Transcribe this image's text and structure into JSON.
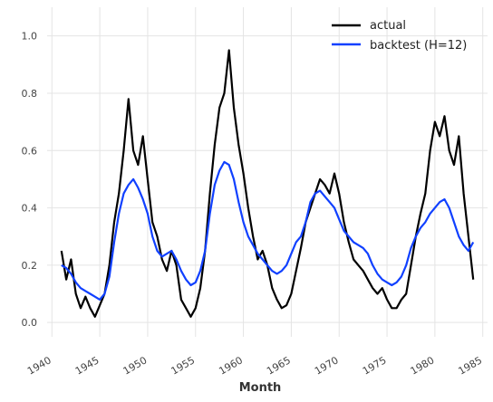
{
  "chart_data": {
    "type": "line",
    "xlabel": "Month",
    "ylabel": "",
    "xlim": [
      1939.5,
      1985.5
    ],
    "ylim": [
      -0.05,
      1.1
    ],
    "x_ticks": [
      1940,
      1945,
      1950,
      1955,
      1960,
      1965,
      1970,
      1975,
      1980,
      1985
    ],
    "x_tick_labels": [
      "1940",
      "1945",
      "1950",
      "1955",
      "1960",
      "1965",
      "1970",
      "1975",
      "1980",
      "1985"
    ],
    "y_ticks": [
      0.0,
      0.2,
      0.4,
      0.6,
      0.8,
      1.0
    ],
    "y_tick_labels": [
      "0.0",
      "0.2",
      "0.4",
      "0.6",
      "0.8",
      "1.0"
    ],
    "grid": true,
    "legend_position": "top-right",
    "series": [
      {
        "name": "actual",
        "color": "#000000",
        "x": [
          1941.0,
          1941.5,
          1942.0,
          1942.5,
          1943.0,
          1943.5,
          1944.0,
          1944.5,
          1945.0,
          1945.5,
          1946.0,
          1946.5,
          1947.0,
          1947.5,
          1948.0,
          1948.5,
          1949.0,
          1949.5,
          1950.0,
          1950.5,
          1951.0,
          1951.5,
          1952.0,
          1952.5,
          1953.0,
          1953.5,
          1954.0,
          1954.5,
          1955.0,
          1955.5,
          1956.0,
          1956.5,
          1957.0,
          1957.5,
          1958.0,
          1958.5,
          1959.0,
          1959.5,
          1960.0,
          1960.5,
          1961.0,
          1961.5,
          1962.0,
          1962.5,
          1963.0,
          1963.5,
          1964.0,
          1964.5,
          1965.0,
          1965.5,
          1966.0,
          1966.5,
          1967.0,
          1967.5,
          1968.0,
          1968.5,
          1969.0,
          1969.5,
          1970.0,
          1970.5,
          1971.0,
          1971.5,
          1972.0,
          1972.5,
          1973.0,
          1973.5,
          1974.0,
          1974.5,
          1975.0,
          1975.5,
          1976.0,
          1976.5,
          1977.0,
          1977.5,
          1978.0,
          1978.5,
          1979.0,
          1979.5,
          1980.0,
          1980.5,
          1981.0,
          1981.5,
          1982.0,
          1982.5,
          1983.0,
          1983.5,
          1984.0
        ],
        "values": [
          0.25,
          0.15,
          0.22,
          0.1,
          0.05,
          0.09,
          0.05,
          0.02,
          0.06,
          0.1,
          0.2,
          0.35,
          0.45,
          0.6,
          0.78,
          0.6,
          0.55,
          0.65,
          0.5,
          0.35,
          0.3,
          0.22,
          0.18,
          0.25,
          0.2,
          0.08,
          0.05,
          0.02,
          0.05,
          0.12,
          0.25,
          0.45,
          0.62,
          0.75,
          0.8,
          0.95,
          0.75,
          0.62,
          0.52,
          0.4,
          0.3,
          0.22,
          0.25,
          0.2,
          0.12,
          0.08,
          0.05,
          0.06,
          0.1,
          0.18,
          0.26,
          0.35,
          0.4,
          0.45,
          0.5,
          0.48,
          0.45,
          0.52,
          0.45,
          0.35,
          0.28,
          0.22,
          0.2,
          0.18,
          0.15,
          0.12,
          0.1,
          0.12,
          0.08,
          0.05,
          0.05,
          0.08,
          0.1,
          0.2,
          0.3,
          0.38,
          0.45,
          0.6,
          0.7,
          0.65,
          0.72,
          0.6,
          0.55,
          0.65,
          0.45,
          0.3,
          0.15
        ]
      },
      {
        "name": "backtest (H=12)",
        "color": "#1040ff",
        "x": [
          1941.0,
          1941.5,
          1942.0,
          1942.5,
          1943.0,
          1943.5,
          1944.0,
          1944.5,
          1945.0,
          1945.5,
          1946.0,
          1946.5,
          1947.0,
          1947.5,
          1948.0,
          1948.5,
          1949.0,
          1949.5,
          1950.0,
          1950.5,
          1951.0,
          1951.5,
          1952.0,
          1952.5,
          1953.0,
          1953.5,
          1954.0,
          1954.5,
          1955.0,
          1955.5,
          1956.0,
          1956.5,
          1957.0,
          1957.5,
          1958.0,
          1958.5,
          1959.0,
          1959.5,
          1960.0,
          1960.5,
          1961.0,
          1961.5,
          1962.0,
          1962.5,
          1963.0,
          1963.5,
          1964.0,
          1964.5,
          1965.0,
          1965.5,
          1966.0,
          1966.5,
          1967.0,
          1967.5,
          1968.0,
          1968.5,
          1969.0,
          1969.5,
          1970.0,
          1970.5,
          1971.0,
          1971.5,
          1972.0,
          1972.5,
          1973.0,
          1973.5,
          1974.0,
          1974.5,
          1975.0,
          1975.5,
          1976.0,
          1976.5,
          1977.0,
          1977.5,
          1978.0,
          1978.5,
          1979.0,
          1979.5,
          1980.0,
          1980.5,
          1981.0,
          1981.5,
          1982.0,
          1982.5,
          1983.0,
          1983.5,
          1984.0
        ],
        "values": [
          0.2,
          0.19,
          0.17,
          0.14,
          0.12,
          0.11,
          0.1,
          0.09,
          0.08,
          0.1,
          0.16,
          0.28,
          0.38,
          0.45,
          0.48,
          0.5,
          0.47,
          0.43,
          0.38,
          0.3,
          0.25,
          0.23,
          0.24,
          0.25,
          0.22,
          0.18,
          0.15,
          0.13,
          0.14,
          0.18,
          0.25,
          0.38,
          0.48,
          0.53,
          0.56,
          0.55,
          0.5,
          0.42,
          0.35,
          0.3,
          0.27,
          0.24,
          0.22,
          0.2,
          0.18,
          0.17,
          0.18,
          0.2,
          0.24,
          0.28,
          0.3,
          0.35,
          0.42,
          0.45,
          0.46,
          0.44,
          0.42,
          0.4,
          0.36,
          0.32,
          0.3,
          0.28,
          0.27,
          0.26,
          0.24,
          0.2,
          0.17,
          0.15,
          0.14,
          0.13,
          0.14,
          0.16,
          0.2,
          0.26,
          0.3,
          0.33,
          0.35,
          0.38,
          0.4,
          0.42,
          0.43,
          0.4,
          0.35,
          0.3,
          0.27,
          0.25,
          0.28
        ]
      }
    ]
  }
}
